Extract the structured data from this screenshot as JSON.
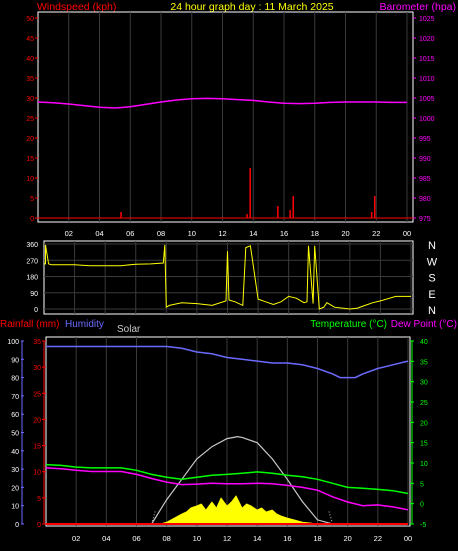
{
  "title": "24 hour graph day : 11 March 2025",
  "colors": {
    "wind": "#ff0000",
    "baro": "#ff00ff",
    "dir": "#ffff00",
    "rain": "#ff0000",
    "humidity": "#6a6aff",
    "solar": "#ffff00",
    "solar_label": "#c8c8c8",
    "temp": "#00ff00",
    "dew": "#ff00ff",
    "curve": "#c8c8c8",
    "grid": "#3a3a3a",
    "axis_text": "#ffffff"
  },
  "chart_data": [
    {
      "type": "line",
      "id": "wind-baro",
      "left_label": "Windspeed (kph)",
      "right_label": "Barometer (hpa)",
      "x_ticks": [
        "02",
        "04",
        "06",
        "08",
        "10",
        "12",
        "14",
        "16",
        "18",
        "20",
        "22",
        "00"
      ],
      "y_left": {
        "min": 0,
        "max": 50,
        "ticks": [
          0,
          5,
          10,
          15,
          20,
          25,
          30,
          35,
          40,
          45,
          50
        ]
      },
      "y_right": {
        "min": 975,
        "max": 1025,
        "ticks": [
          975,
          980,
          985,
          990,
          995,
          1000,
          1005,
          1010,
          1015,
          1020,
          1025
        ]
      },
      "barometer": {
        "name": "Barometer",
        "x": [
          0,
          1,
          2,
          3,
          4,
          5,
          6,
          7,
          8,
          9,
          10,
          11,
          12,
          13,
          14,
          15,
          16,
          17,
          18,
          19,
          20,
          21,
          22,
          23,
          24
        ],
        "values": [
          1004.0,
          1003.8,
          1003.5,
          1003.1,
          1002.7,
          1002.5,
          1002.8,
          1003.4,
          1004.0,
          1004.5,
          1004.8,
          1004.9,
          1004.8,
          1004.6,
          1004.4,
          1004.0,
          1003.7,
          1003.6,
          1003.7,
          1003.9,
          1004.0,
          1004.0,
          1004.0,
          1003.9,
          1003.9
        ]
      },
      "wind_spikes": {
        "name": "Windspeed",
        "x": [
          5.4,
          13.6,
          13.8,
          15.6,
          16.4,
          16.6,
          21.7,
          21.9
        ],
        "values": [
          1.5,
          1.0,
          12.5,
          3.0,
          2.0,
          5.5,
          1.5,
          5.5
        ]
      }
    },
    {
      "type": "line",
      "id": "direction",
      "y_ticks": [
        0,
        90,
        180,
        270,
        360
      ],
      "compass": [
        "N",
        "W",
        "S",
        "E",
        "N"
      ],
      "x": [
        0,
        0.1,
        0.1,
        0.3,
        0.5,
        1,
        2,
        3,
        4,
        5,
        6,
        7,
        7.8,
        7.9,
        8.0,
        8.2,
        9,
        10,
        11,
        11.9,
        12,
        12.1,
        12.5,
        13,
        13.2,
        13.5,
        14,
        14.5,
        15,
        15.5,
        16,
        16.5,
        17,
        17.2,
        17.3,
        17.6,
        17.7,
        18,
        18.3,
        18.5,
        19,
        20,
        20.5,
        21,
        21.5,
        22,
        23,
        24
      ],
      "values": [
        250,
        250,
        355,
        250,
        245,
        245,
        245,
        240,
        240,
        240,
        248,
        250,
        255,
        355,
        10,
        20,
        35,
        30,
        20,
        45,
        320,
        50,
        40,
        20,
        340,
        350,
        55,
        40,
        25,
        40,
        70,
        60,
        35,
        40,
        350,
        30,
        350,
        0,
        10,
        35,
        10,
        0,
        5,
        20,
        35,
        45,
        70,
        70
      ]
    },
    {
      "type": "line",
      "id": "temp-hum-rain",
      "labels": {
        "rain": "Rainfall (mm)",
        "humidity": "Humidity",
        "solar": "Solar",
        "temp": "Temperature (°C)",
        "dew": "Dew Point (°C)"
      },
      "x_ticks": [
        "02",
        "04",
        "06",
        "08",
        "10",
        "12",
        "14",
        "16",
        "18",
        "20",
        "22",
        "00"
      ],
      "y_humidity": {
        "min": 0,
        "max": 100,
        "ticks": [
          0,
          10,
          20,
          30,
          40,
          50,
          60,
          70,
          80,
          90,
          100
        ]
      },
      "y_rain": {
        "min": 0,
        "max": 35,
        "ticks": [
          0,
          5,
          10,
          15,
          20,
          25,
          30,
          35
        ]
      },
      "y_temp": {
        "min": -5,
        "max": 40,
        "ticks": [
          -5,
          0,
          5,
          10,
          15,
          20,
          25,
          30,
          35,
          40
        ]
      },
      "humidity": {
        "x": [
          0,
          2,
          4,
          6,
          8,
          9,
          10,
          11,
          12,
          13,
          14,
          15,
          16,
          17,
          18,
          19,
          19.5,
          20,
          20.5,
          21,
          22,
          23,
          24
        ],
        "values": [
          97,
          97,
          97,
          97,
          97,
          96,
          94,
          93,
          91,
          90,
          89,
          88,
          88,
          87,
          85,
          82,
          80,
          80,
          80,
          82,
          85,
          87,
          89
        ]
      },
      "temperature": {
        "x": [
          0,
          1,
          2,
          3,
          4,
          5,
          6,
          7,
          8,
          9,
          10,
          11,
          12,
          13,
          14,
          15,
          16,
          17,
          18,
          19,
          20,
          21,
          22,
          23,
          24
        ],
        "values": [
          9.6,
          9.4,
          9.0,
          8.8,
          8.8,
          8.8,
          8.2,
          7.2,
          6.5,
          6.0,
          6.5,
          7.0,
          7.2,
          7.5,
          7.8,
          7.5,
          7.0,
          6.6,
          6.0,
          5.0,
          4.0,
          3.8,
          3.5,
          3.2,
          2.5
        ]
      },
      "dew_point": {
        "x": [
          0,
          1,
          2,
          3,
          4,
          5,
          6,
          7,
          8,
          9,
          10,
          11,
          12,
          13,
          14,
          15,
          16,
          17,
          18,
          19,
          20,
          21,
          22,
          23,
          24
        ],
        "values": [
          8.8,
          8.6,
          8.2,
          7.9,
          7.9,
          7.9,
          7.2,
          6.2,
          5.3,
          4.7,
          4.8,
          5.0,
          4.9,
          4.9,
          5.0,
          4.9,
          4.5,
          4.0,
          3.3,
          1.7,
          0.4,
          -0.5,
          -0.3,
          -0.8,
          -1.5
        ]
      },
      "solar_envelope": {
        "x": [
          7.0,
          8,
          9,
          10,
          11,
          12,
          12.7,
          13,
          14,
          15,
          16,
          17,
          18,
          19.0
        ],
        "values": [
          0,
          6,
          11,
          16,
          19,
          21,
          21.5,
          21.3,
          20,
          16,
          11,
          5.5,
          1,
          0
        ]
      },
      "solar_actual": {
        "x": [
          7.5,
          8.0,
          8.5,
          9.0,
          9.3,
          9.6,
          10.0,
          10.3,
          10.6,
          11.0,
          11.3,
          11.6,
          12.0,
          12.3,
          12.6,
          13.0,
          13.3,
          13.6,
          14.0,
          14.3,
          14.6,
          15.0,
          15.3,
          15.6,
          16.0,
          16.5,
          17.0,
          17.5,
          18.0
        ],
        "values": [
          0,
          0.5,
          1.5,
          2.5,
          3.0,
          4.0,
          4.5,
          5.0,
          3.5,
          5.5,
          4.0,
          6.5,
          4.5,
          5.5,
          7.0,
          4.0,
          5.0,
          4.5,
          3.5,
          4.0,
          3.0,
          3.5,
          2.5,
          2.0,
          1.5,
          1.0,
          0.5,
          0.3,
          0
        ]
      },
      "rain": {
        "x": [
          0,
          24
        ],
        "values": [
          0,
          0
        ]
      }
    }
  ]
}
